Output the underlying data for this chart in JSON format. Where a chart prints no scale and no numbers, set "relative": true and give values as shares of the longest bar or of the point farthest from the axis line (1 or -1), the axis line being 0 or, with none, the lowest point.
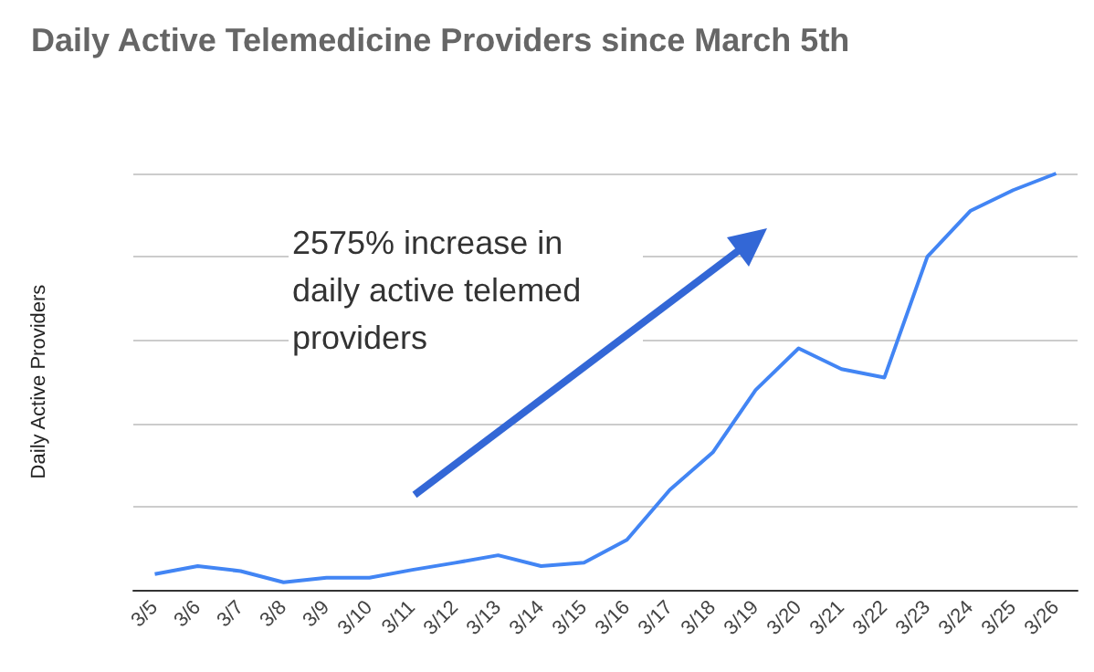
{
  "chart_data": {
    "type": "line",
    "title": "Daily Active Telemedicine Providers since March 5th",
    "ylabel": "Daily Active Providers",
    "relative": true,
    "grid": "y",
    "marker": "none",
    "line_style": "solid",
    "annotations": [
      "2575% increase in daily active telemed providers"
    ],
    "categories": [
      "3/5",
      "3/6",
      "3/7",
      "3/8",
      "3/9",
      "3/10",
      "3/11",
      "3/12",
      "3/13",
      "3/14",
      "3/15",
      "3/16",
      "3/17",
      "3/18",
      "3/19",
      "3/20",
      "3/21",
      "3/22",
      "3/23",
      "3/24",
      "3/25",
      "3/26"
    ],
    "series": [
      {
        "color": "#4285f4",
        "values": [
          0.038,
          0.057,
          0.045,
          0.018,
          0.029,
          0.029,
          0.048,
          0.065,
          0.083,
          0.057,
          0.065,
          0.12,
          0.24,
          0.33,
          0.48,
          0.58,
          0.53,
          0.51,
          0.8,
          0.91,
          0.96,
          1
        ]
      }
    ]
  }
}
